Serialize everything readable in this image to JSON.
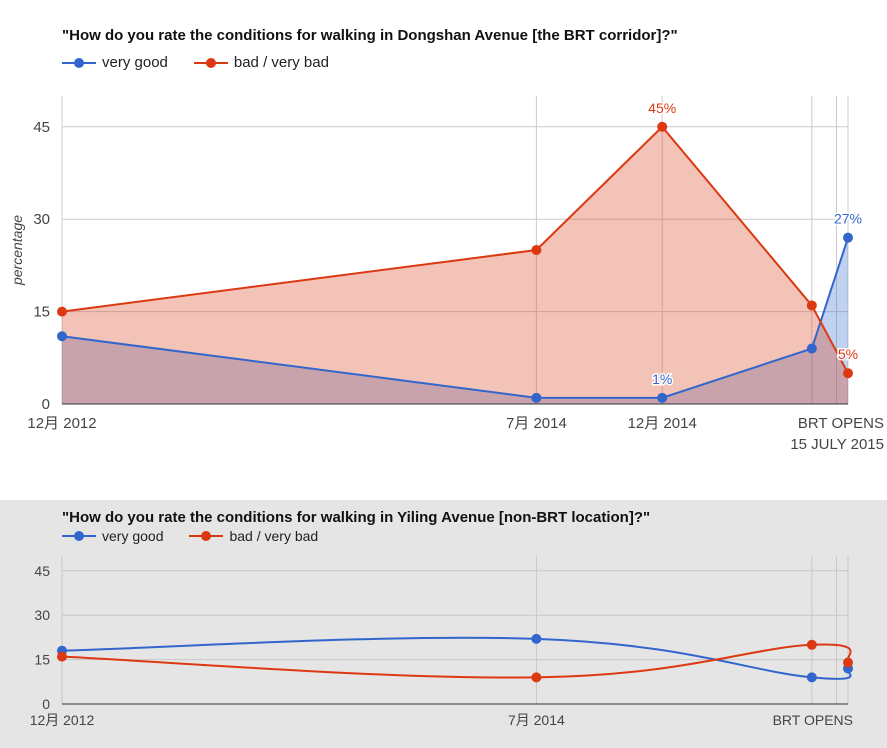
{
  "charts": [
    {
      "title": "\"How do you rate the conditions for walking in Dongshan Avenue [the BRT corridor]?\"",
      "legend": [
        "very good",
        "bad / very bad"
      ]
    },
    {
      "title": "\"How do you rate the conditions for walking in Yiling Avenue [non-BRT location]?\"",
      "legend": [
        "very good",
        "bad / very bad"
      ]
    }
  ],
  "colors": {
    "very_good": "#3366cc",
    "bad": "#dc3912"
  },
  "chart_data": [
    {
      "type": "area",
      "title": "\"How do you rate the conditions for walking in Dongshan Avenue [the BRT corridor]?\"",
      "ylabel": "percentage",
      "xlabel": "",
      "ylim": [
        0,
        50
      ],
      "yticks": [
        0,
        15,
        30,
        45
      ],
      "x_ticks": [
        {
          "x": "2012-12",
          "label": "12月 2012"
        },
        {
          "x": "2014-07",
          "label": "7月 2014"
        },
        {
          "x": "2014-12",
          "label": "12月 2014"
        },
        {
          "x": "2015-07-15",
          "label": "BRT OPENS\n15 JULY 2015"
        }
      ],
      "x_dates": [
        "2012-12",
        "2014-07",
        "2014-12",
        "2015-06",
        "2015-07-15"
      ],
      "series": [
        {
          "name": "very good",
          "color": "#3366cc",
          "values": [
            11,
            1,
            1,
            9,
            27
          ],
          "labels": [
            null,
            null,
            "1%",
            null,
            "27%"
          ]
        },
        {
          "name": "bad / very bad",
          "color": "#dc3912",
          "values": [
            15,
            25,
            45,
            16,
            5
          ],
          "labels": [
            null,
            null,
            "45%",
            null,
            "5%"
          ]
        }
      ],
      "grid": true,
      "legend_position": "top-left"
    },
    {
      "type": "line",
      "title": "\"How do you rate the conditions for walking in Yiling Avenue [non-BRT location]?\"",
      "ylabel": "",
      "xlabel": "",
      "ylim": [
        0,
        50
      ],
      "yticks": [
        0,
        15,
        30,
        45
      ],
      "x_ticks": [
        {
          "x": "2012-12",
          "label": "12月 2012"
        },
        {
          "x": "2014-07",
          "label": "7月 2014"
        },
        {
          "x": "2015-07-15",
          "label": "BRT OPENS"
        }
      ],
      "x_dates": [
        "2012-12",
        "2014-07",
        "2015-06",
        "2015-07-15"
      ],
      "series": [
        {
          "name": "very good",
          "color": "#3366cc",
          "values": [
            18,
            22,
            9,
            12
          ]
        },
        {
          "name": "bad / very bad",
          "color": "#dc3912",
          "values": [
            16,
            9,
            20,
            14
          ]
        }
      ],
      "smooth": true,
      "grid": true,
      "legend_position": "top-left"
    }
  ]
}
